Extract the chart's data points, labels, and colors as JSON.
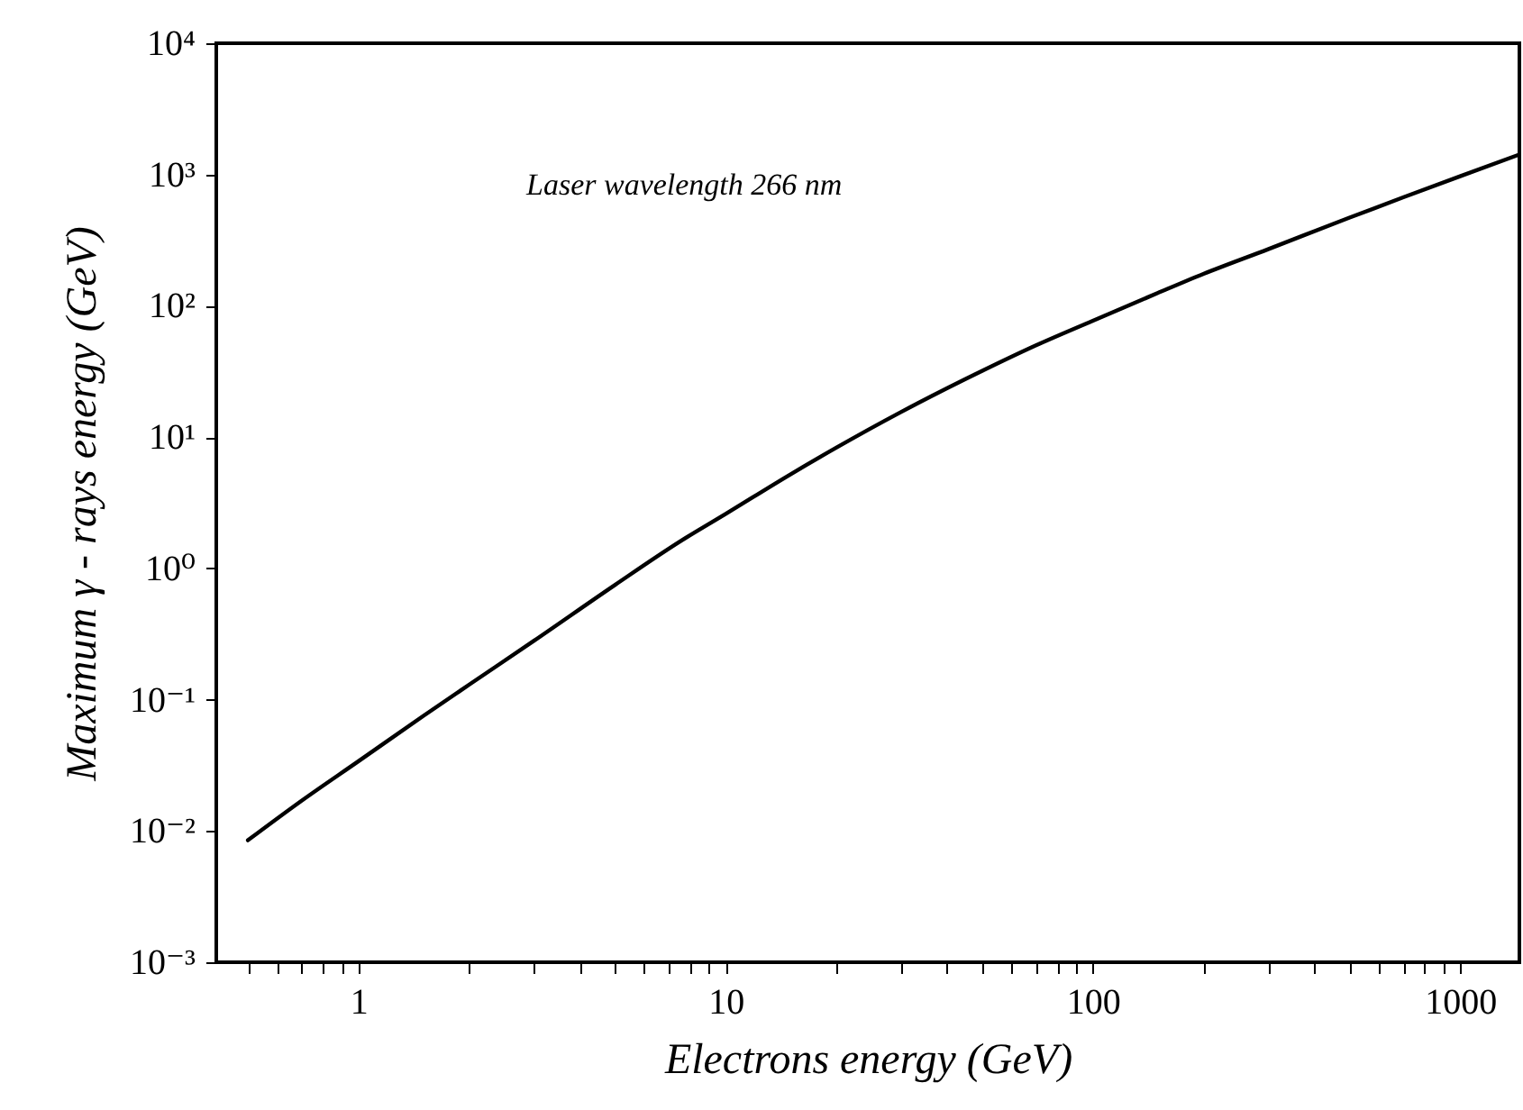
{
  "chart_data": {
    "type": "line",
    "xlabel": "Electrons energy (GeV)",
    "ylabel": "Maximum γ - rays energy (GeV)",
    "log": "xy",
    "annotations": [
      "Laser wavelength 266 nm"
    ],
    "xlim": [
      0.41,
      1450
    ],
    "ylim": [
      0.001,
      10000
    ],
    "xticks": [
      {
        "value": 0.5,
        "label": null
      },
      {
        "value": 0.6,
        "label": null
      },
      {
        "value": 0.7,
        "label": null
      },
      {
        "value": 0.8,
        "label": null
      },
      {
        "value": 0.9,
        "label": null
      },
      1,
      {
        "value": 2,
        "label": null
      },
      {
        "value": 3,
        "label": null
      },
      {
        "value": 4,
        "label": null
      },
      {
        "value": 5,
        "label": null
      },
      {
        "value": 6,
        "label": null
      },
      {
        "value": 7,
        "label": null
      },
      {
        "value": 8,
        "label": null
      },
      {
        "value": 9,
        "label": null
      },
      10,
      {
        "value": 20,
        "label": null
      },
      {
        "value": 30,
        "label": null
      },
      {
        "value": 40,
        "label": null
      },
      {
        "value": 50,
        "label": null
      },
      {
        "value": 60,
        "label": null
      },
      {
        "value": 70,
        "label": null
      },
      {
        "value": 80,
        "label": null
      },
      {
        "value": 90,
        "label": null
      },
      100,
      {
        "value": 200,
        "label": null
      },
      {
        "value": 300,
        "label": null
      },
      {
        "value": 400,
        "label": null
      },
      {
        "value": 500,
        "label": null
      },
      {
        "value": 600,
        "label": null
      },
      {
        "value": 700,
        "label": null
      },
      {
        "value": 800,
        "label": null
      },
      {
        "value": 900,
        "label": null
      },
      1000
    ],
    "yticks": [
      {
        "value": 0.001,
        "label": "10⁻³"
      },
      {
        "value": 0.01,
        "label": "10⁻²"
      },
      {
        "value": 0.1,
        "label": "10⁻¹"
      },
      {
        "value": 1,
        "label": "10⁰"
      },
      {
        "value": 10,
        "label": "10¹"
      },
      {
        "value": 100,
        "label": "10²"
      },
      {
        "value": 1000,
        "label": "10³"
      },
      {
        "value": 10000,
        "label": "10⁴"
      }
    ],
    "x": [
      0.5,
      0.7,
      1,
      1.5,
      2,
      3,
      5,
      7.5,
      10,
      15,
      20,
      30,
      50,
      70,
      100,
      150,
      200,
      300,
      500,
      700,
      1000,
      1450
    ],
    "series": [
      {
        "color": "#000000",
        "values": [
          0.0085,
          0.017,
          0.034,
          0.075,
          0.13,
          0.28,
          0.75,
          1.6,
          2.6,
          5.2,
          8.3,
          15.5,
          32,
          50,
          77,
          125,
          175,
          270,
          470,
          670,
          970,
          1420
        ]
      }
    ]
  }
}
